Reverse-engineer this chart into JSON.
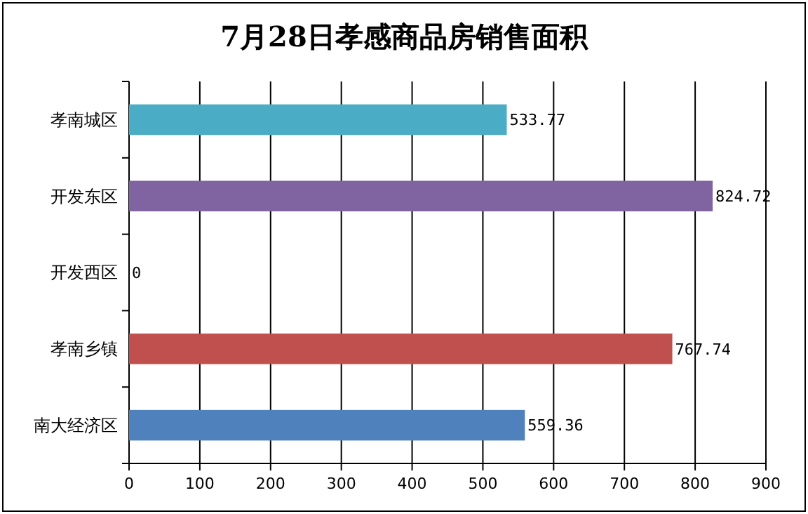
{
  "chart_data": {
    "type": "bar",
    "orientation": "horizontal",
    "title": "7月28日孝感商品房销售面积",
    "categories": [
      "孝南城区",
      "开发东区",
      "开发西区",
      "孝南乡镇",
      "南大经济区"
    ],
    "values": [
      533.77,
      824.72,
      0,
      767.74,
      559.36
    ],
    "colors": [
      "#4bacc6",
      "#8064a2",
      "#9bbb59",
      "#c0504d",
      "#4f81bd"
    ],
    "xlim": [
      0,
      900
    ],
    "xticks": [
      0,
      100,
      200,
      300,
      400,
      500,
      600,
      700,
      800,
      900
    ],
    "grid": "x",
    "data_labels": true
  }
}
